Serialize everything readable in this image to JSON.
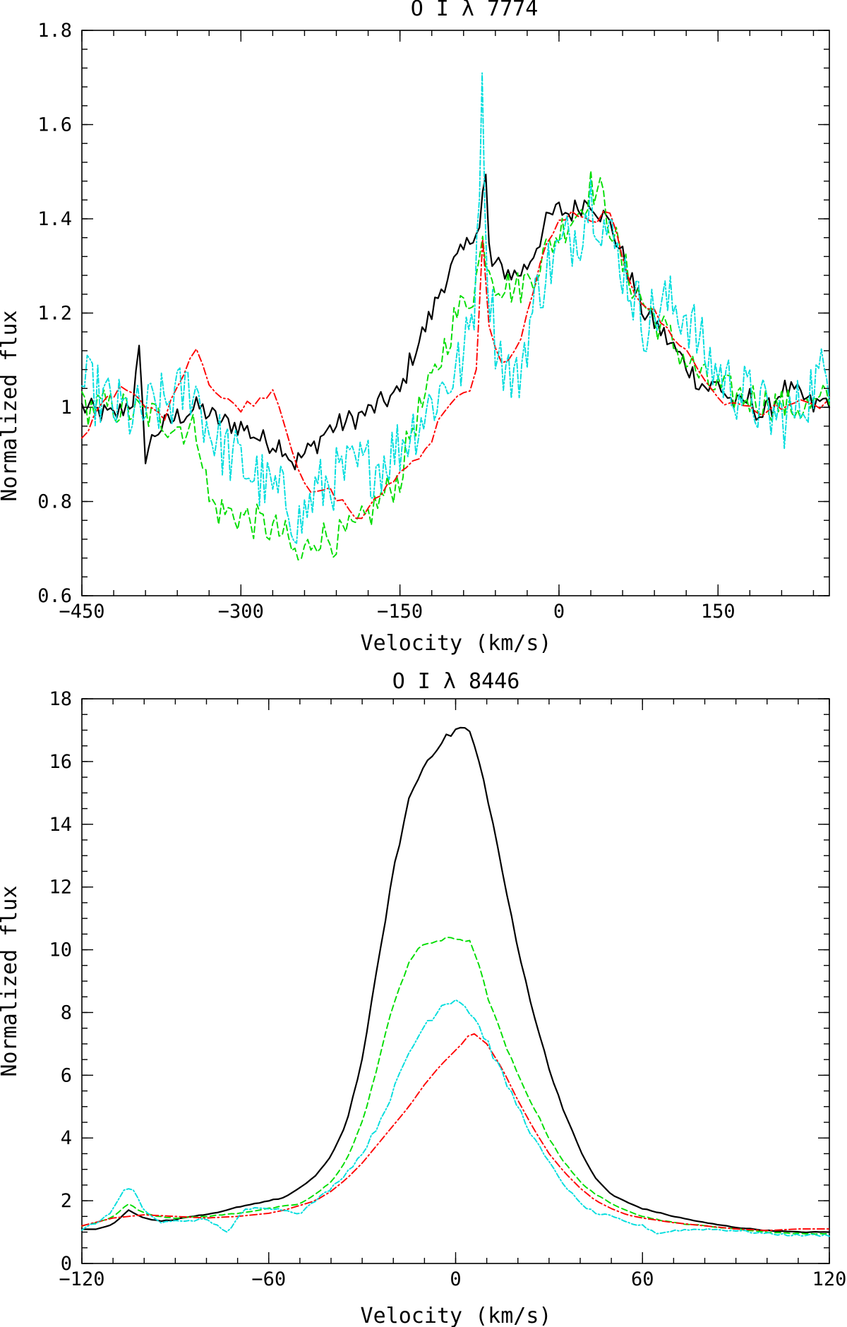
{
  "chart_data": [
    {
      "type": "line",
      "title": "O I λ 7774",
      "xlabel": "Velocity (km/s)",
      "ylabel": "Normalized flux",
      "xlim": [
        -450,
        255
      ],
      "ylim": [
        0.6,
        1.8
      ],
      "xticks": [
        -450,
        -300,
        -150,
        0,
        150
      ],
      "xtick_labels": [
        "−450",
        "−300",
        "−150",
        "0",
        "150"
      ],
      "yticks": [
        0.6,
        0.8,
        1.0,
        1.2,
        1.4,
        1.6,
        1.8
      ],
      "ytick_labels": [
        "0.6",
        "0.8",
        "1",
        "1.2",
        "1.4",
        "1.6",
        "1.8"
      ],
      "x_minor_step": 30,
      "y_minor_step": 0.04,
      "series": [
        {
          "name": "black-solid",
          "color": "#000000",
          "dash": "solid",
          "noise": 0.025,
          "noise_step": 3,
          "x": [
            -450,
            -420,
            -400,
            -397,
            -393,
            -390,
            -380,
            -360,
            -340,
            -320,
            -300,
            -280,
            -260,
            -250,
            -240,
            -230,
            -220,
            -200,
            -180,
            -160,
            -150,
            -140,
            -130,
            -120,
            -110,
            -100,
            -90,
            -85,
            -80,
            -75,
            -72,
            -70,
            -68,
            -65,
            -60,
            -50,
            -40,
            -30,
            -20,
            -10,
            0,
            10,
            20,
            30,
            40,
            50,
            60,
            70,
            80,
            90,
            100,
            110,
            120,
            130,
            140,
            150,
            160,
            170,
            180,
            190,
            200,
            210,
            220,
            230,
            240,
            255
          ],
          "values": [
            1.0,
            0.98,
            1.02,
            1.15,
            1.0,
            0.9,
            0.95,
            0.98,
            1.0,
            0.97,
            0.96,
            0.93,
            0.92,
            0.88,
            0.9,
            0.92,
            0.95,
            0.97,
            0.99,
            1.02,
            1.03,
            1.1,
            1.15,
            1.2,
            1.26,
            1.3,
            1.33,
            1.35,
            1.38,
            1.38,
            1.45,
            1.55,
            1.42,
            1.3,
            1.3,
            1.29,
            1.28,
            1.3,
            1.35,
            1.4,
            1.42,
            1.41,
            1.43,
            1.44,
            1.41,
            1.38,
            1.32,
            1.26,
            1.2,
            1.18,
            1.15,
            1.12,
            1.09,
            1.06,
            1.04,
            1.05,
            1.02,
            1.0,
            1.02,
            0.98,
            1.0,
            1.04,
            1.03,
            1.02,
            1.0,
            1.02
          ]
        },
        {
          "name": "green-dashed",
          "color": "#00dd00",
          "dash": "8 5",
          "noise": 0.04,
          "noise_step": 3,
          "x": [
            -450,
            -420,
            -400,
            -380,
            -360,
            -340,
            -330,
            -320,
            -300,
            -280,
            -260,
            -245,
            -230,
            -210,
            -190,
            -170,
            -150,
            -140,
            -120,
            -100,
            -90,
            -80,
            -72,
            -65,
            -60,
            -50,
            -40,
            -30,
            -20,
            -10,
            0,
            10,
            20,
            30,
            40,
            50,
            60,
            80,
            100,
            120,
            140,
            160,
            180,
            200,
            220,
            240,
            255
          ],
          "values": [
            1.0,
            1.0,
            0.99,
            0.98,
            0.96,
            0.95,
            0.8,
            0.78,
            0.77,
            0.75,
            0.73,
            0.67,
            0.73,
            0.72,
            0.74,
            0.8,
            0.85,
            0.95,
            1.05,
            1.18,
            1.22,
            1.25,
            1.35,
            1.3,
            1.27,
            1.26,
            1.25,
            1.27,
            1.3,
            1.34,
            1.37,
            1.4,
            1.42,
            1.47,
            1.45,
            1.38,
            1.3,
            1.22,
            1.16,
            1.1,
            1.05,
            1.03,
            1.02,
            1.01,
            1.0,
            1.0,
            1.02
          ]
        },
        {
          "name": "red-dashdot",
          "color": "#ff0000",
          "dash": "10 4 2 4",
          "noise": 0.01,
          "noise_step": 6,
          "x": [
            -450,
            -430,
            -410,
            -390,
            -370,
            -360,
            -345,
            -340,
            -330,
            -320,
            -300,
            -280,
            -270,
            -260,
            -250,
            -240,
            -230,
            -220,
            -200,
            -190,
            -180,
            -160,
            -140,
            -120,
            -110,
            -100,
            -80,
            -75,
            -72,
            -68,
            -60,
            -50,
            -40,
            -30,
            -20,
            -10,
            0,
            10,
            20,
            30,
            40,
            50,
            60,
            70,
            80,
            90,
            100,
            120,
            140,
            160,
            180,
            190,
            200,
            220,
            240,
            255
          ],
          "values": [
            0.93,
            1.02,
            1.04,
            1.0,
            0.98,
            1.05,
            1.12,
            1.13,
            1.05,
            1.02,
            1.0,
            1.02,
            1.04,
            0.98,
            0.9,
            0.83,
            0.81,
            0.83,
            0.79,
            0.76,
            0.78,
            0.84,
            0.88,
            0.93,
            0.99,
            1.02,
            1.03,
            1.15,
            1.35,
            1.2,
            1.12,
            1.09,
            1.12,
            1.2,
            1.28,
            1.36,
            1.39,
            1.41,
            1.4,
            1.39,
            1.41,
            1.4,
            1.32,
            1.25,
            1.22,
            1.2,
            1.17,
            1.12,
            1.05,
            1.0,
            1.01,
            0.97,
            1.0,
            1.01,
            1.0,
            1.01
          ]
        },
        {
          "name": "cyan-dashdot",
          "color": "#00dddd",
          "dash": "7 3 2 3",
          "noise": 0.07,
          "noise_step": 2.5,
          "x": [
            -450,
            -420,
            -400,
            -380,
            -360,
            -345,
            -330,
            -310,
            -290,
            -270,
            -255,
            -245,
            -230,
            -210,
            -190,
            -170,
            -150,
            -130,
            -110,
            -90,
            -80,
            -72,
            -68,
            -60,
            -50,
            -40,
            -30,
            -20,
            -10,
            0,
            10,
            20,
            30,
            40,
            50,
            60,
            80,
            100,
            120,
            140,
            160,
            180,
            200,
            220,
            240,
            255
          ],
          "values": [
            1.05,
            1.0,
            0.98,
            1.0,
            1.02,
            1.05,
            0.95,
            0.9,
            0.86,
            0.82,
            0.8,
            0.75,
            0.82,
            0.85,
            0.87,
            0.88,
            0.92,
            0.98,
            1.04,
            1.1,
            1.22,
            1.68,
            1.3,
            1.15,
            1.08,
            1.05,
            1.15,
            1.25,
            1.3,
            1.33,
            1.36,
            1.38,
            1.45,
            1.4,
            1.35,
            1.3,
            1.18,
            1.22,
            1.2,
            1.1,
            1.05,
            1.02,
            0.98,
            0.98,
            1.05,
            1.08
          ]
        }
      ]
    },
    {
      "type": "line",
      "title": "O I λ 8446",
      "xlabel": "Velocity (km/s)",
      "ylabel": "Normalized flux",
      "xlim": [
        -120,
        120
      ],
      "ylim": [
        0,
        18
      ],
      "xticks": [
        -120,
        -60,
        0,
        60,
        120
      ],
      "xtick_labels": [
        "−120",
        "−60",
        "0",
        "60",
        "120"
      ],
      "yticks": [
        0,
        2,
        4,
        6,
        8,
        10,
        12,
        14,
        16,
        18
      ],
      "ytick_labels": [
        "0",
        "2",
        "4",
        "6",
        "8",
        "10",
        "12",
        "14",
        "16",
        "18"
      ],
      "x_minor_step": 10,
      "y_minor_step": 0.5,
      "series": [
        {
          "name": "black-solid",
          "color": "#000000",
          "dash": "solid",
          "noise": 0.04,
          "noise_step": 1.5,
          "x": [
            -120,
            -115,
            -110,
            -105,
            -100,
            -95,
            -90,
            -85,
            -80,
            -75,
            -70,
            -65,
            -60,
            -55,
            -50,
            -45,
            -40,
            -35,
            -30,
            -25,
            -20,
            -15,
            -10,
            -5,
            0,
            2,
            5,
            10,
            15,
            20,
            25,
            30,
            35,
            40,
            45,
            50,
            55,
            60,
            70,
            80,
            90,
            100,
            110,
            120
          ],
          "values": [
            1.1,
            1.1,
            1.25,
            1.7,
            1.45,
            1.35,
            1.4,
            1.5,
            1.55,
            1.65,
            1.8,
            1.9,
            2.0,
            2.1,
            2.4,
            2.8,
            3.4,
            4.5,
            6.5,
            9.5,
            12.5,
            14.8,
            15.9,
            16.6,
            17.0,
            17.1,
            16.9,
            15.0,
            12.5,
            10.0,
            8.0,
            6.2,
            4.8,
            3.6,
            2.7,
            2.2,
            1.95,
            1.75,
            1.5,
            1.3,
            1.15,
            1.05,
            1.0,
            1.0
          ]
        },
        {
          "name": "green-dashed",
          "color": "#00dd00",
          "dash": "8 5",
          "noise": 0.05,
          "noise_step": 1.5,
          "x": [
            -120,
            -115,
            -110,
            -105,
            -100,
            -95,
            -90,
            -80,
            -70,
            -60,
            -50,
            -45,
            -40,
            -35,
            -30,
            -25,
            -20,
            -15,
            -10,
            -5,
            0,
            5,
            10,
            15,
            20,
            25,
            30,
            35,
            40,
            45,
            50,
            55,
            60,
            70,
            80,
            90,
            100,
            110,
            120
          ],
          "values": [
            1.2,
            1.3,
            1.5,
            1.9,
            1.6,
            1.5,
            1.45,
            1.5,
            1.6,
            1.75,
            1.9,
            2.2,
            2.6,
            3.3,
            4.5,
            6.3,
            8.3,
            9.6,
            10.2,
            10.3,
            10.35,
            10.3,
            8.6,
            7.2,
            6.0,
            5.0,
            4.0,
            3.2,
            2.6,
            2.2,
            1.9,
            1.7,
            1.5,
            1.3,
            1.2,
            1.1,
            1.0,
            0.95,
            0.95
          ]
        },
        {
          "name": "red-dashdot",
          "color": "#ff0000",
          "dash": "10 4 2 4",
          "noise": 0.0,
          "noise_step": 2,
          "x": [
            -120,
            -110,
            -100,
            -90,
            -80,
            -70,
            -60,
            -55,
            -50,
            -45,
            -40,
            -35,
            -30,
            -25,
            -20,
            -15,
            -10,
            -5,
            0,
            3,
            5,
            10,
            15,
            20,
            25,
            30,
            35,
            40,
            45,
            50,
            55,
            60,
            70,
            80,
            90,
            100,
            110,
            120
          ],
          "values": [
            1.2,
            1.45,
            1.55,
            1.5,
            1.45,
            1.5,
            1.6,
            1.7,
            1.85,
            2.0,
            2.3,
            2.7,
            3.2,
            3.8,
            4.4,
            5.0,
            5.7,
            6.3,
            6.8,
            7.1,
            7.4,
            7.0,
            6.2,
            5.2,
            4.3,
            3.5,
            2.9,
            2.4,
            2.0,
            1.75,
            1.55,
            1.45,
            1.3,
            1.2,
            1.1,
            1.05,
            1.1,
            1.1
          ]
        },
        {
          "name": "cyan-dashdot",
          "color": "#00dddd",
          "dash": "7 3 2 3",
          "noise": 0.12,
          "noise_step": 1.5,
          "x": [
            -120,
            -115,
            -110,
            -107,
            -104,
            -100,
            -95,
            -90,
            -80,
            -73,
            -68,
            -62,
            -55,
            -50,
            -45,
            -40,
            -35,
            -30,
            -25,
            -20,
            -15,
            -10,
            -5,
            0,
            5,
            10,
            15,
            20,
            25,
            30,
            35,
            40,
            45,
            50,
            55,
            60,
            65,
            70,
            80,
            90,
            100,
            110,
            120
          ],
          "values": [
            1.1,
            1.3,
            1.7,
            2.3,
            2.4,
            1.7,
            1.3,
            1.35,
            1.4,
            1.0,
            1.7,
            1.8,
            1.7,
            1.6,
            2.0,
            2.4,
            2.9,
            3.5,
            4.4,
            5.5,
            6.7,
            7.6,
            8.2,
            8.5,
            8.0,
            7.1,
            6.0,
            5.0,
            4.0,
            3.2,
            2.5,
            1.9,
            1.6,
            1.5,
            1.3,
            1.2,
            0.95,
            1.05,
            1.1,
            1.05,
            0.95,
            0.9,
            0.9
          ]
        }
      ]
    }
  ]
}
